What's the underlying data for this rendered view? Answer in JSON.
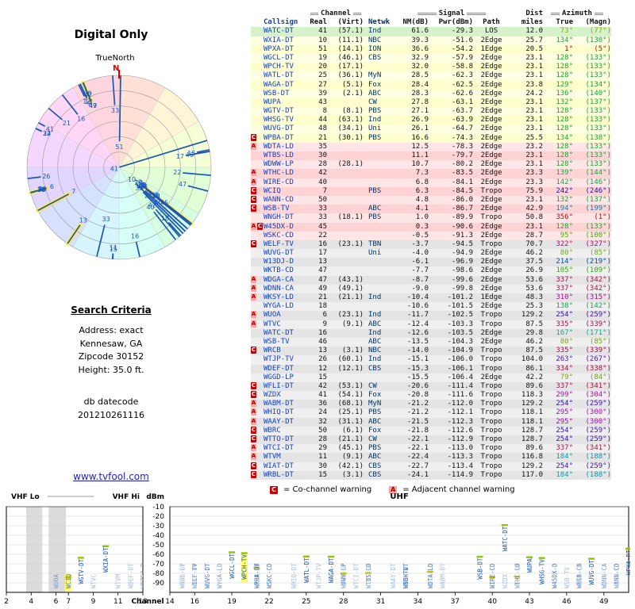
{
  "radar": {
    "title": "Digital Only",
    "true_north": "TrueNorth",
    "north": "N"
  },
  "search": {
    "heading": "Search Criteria",
    "address_label": "Address: exact",
    "city": "Kennesaw, GA",
    "zip": "Zipcode 30152",
    "height": "Height: 35.0 ft.",
    "db_label": "db datecode",
    "db_value": "201210261116",
    "site_link": "www.tvfool.com"
  },
  "legend": {
    "c_symbol": "C",
    "c_text": "= Co-channel warning",
    "a_symbol": "A",
    "a_text": "= Adjacent channel warning"
  },
  "table_headers": {
    "channel_group": "Channel",
    "signal_group": "Signal",
    "dist_group": "Dist",
    "azimuth_group": "Azimuth",
    "callsign": "Callsign",
    "real": "Real",
    "virt": "(Virt)",
    "netwk": "Netwk",
    "nm": "NM(dB)",
    "pwr": "Pwr(dBm)",
    "path": "Path",
    "miles": "miles",
    "true": "True",
    "magn": "(Magn)"
  },
  "axis": {
    "vhf_lo": "VHF Lo",
    "vhf_hi": "VHF Hi",
    "uhf": "UHF",
    "dbm": "dBm",
    "channel": "Channel",
    "dbm_ticks": [
      -10,
      -20,
      -30,
      -40,
      -50,
      -60,
      -70,
      -80,
      -90
    ],
    "vhf_ticks": [
      2,
      4,
      6,
      7,
      9,
      11,
      13
    ],
    "uhf_ticks": [
      14,
      16,
      19,
      22,
      25,
      28,
      31,
      34,
      37,
      40,
      43,
      46,
      49
    ]
  },
  "chart_data": {
    "type": "table",
    "title": "Digital Only",
    "views": [
      "polar-radar-by-azimuth",
      "signal-table",
      "channel-vs-dbm-band-chart"
    ],
    "radar_axes": {
      "angular": "azimuth_true_deg",
      "radial": "NM(dB), strongest at center"
    },
    "band_axes": {
      "x": "real channel 2-13 (VHF) / 14-51 (UHF)",
      "y": "Pwr(dBm)",
      "ylim": [
        -90,
        -10
      ]
    },
    "stations": [
      {
        "call": "WATC-DT",
        "real": 41,
        "virt": "(57.1)",
        "net": "Ind",
        "nm": 61.6,
        "pwr": -29.3,
        "path": "LOS",
        "mi": 12.0,
        "az": 73,
        "mag": 77,
        "warn": "",
        "zone": "green",
        "hl": false
      },
      {
        "call": "WXIA-DT",
        "real": 10,
        "virt": "(11.1)",
        "net": "NBC",
        "nm": 39.3,
        "pwr": -51.6,
        "path": "2Edge",
        "mi": 25.7,
        "az": 134,
        "mag": 138,
        "warn": "",
        "zone": "yellow",
        "hl": false
      },
      {
        "call": "WPXA-DT",
        "real": 51,
        "virt": "(14.1)",
        "net": "ION",
        "nm": 36.6,
        "pwr": -54.2,
        "path": "1Edge",
        "mi": 20.5,
        "az": 1,
        "mag": 5,
        "warn": "",
        "zone": "yellow",
        "hl": false
      },
      {
        "call": "WGCL-DT",
        "real": 19,
        "virt": "(46.1)",
        "net": "CBS",
        "nm": 32.9,
        "pwr": -57.9,
        "path": "2Edge",
        "mi": 23.1,
        "az": 128,
        "mag": 133,
        "warn": "",
        "zone": "yellow",
        "hl": false
      },
      {
        "call": "WPCH-TV",
        "real": 20,
        "virt": "(17.1)",
        "net": "",
        "nm": 32.0,
        "pwr": -58.8,
        "path": "2Edge",
        "mi": 23.1,
        "az": 128,
        "mag": 133,
        "warn": "",
        "zone": "yellow",
        "hl": true
      },
      {
        "call": "WATL-DT",
        "real": 25,
        "virt": "(36.1)",
        "net": "MyN",
        "nm": 28.5,
        "pwr": -62.3,
        "path": "2Edge",
        "mi": 23.1,
        "az": 128,
        "mag": 133,
        "warn": "",
        "zone": "yellow",
        "hl": false
      },
      {
        "call": "WAGA-DT",
        "real": 27,
        "virt": "(5.1)",
        "net": "Fox",
        "nm": 28.4,
        "pwr": -62.5,
        "path": "2Edge",
        "mi": 23.8,
        "az": 129,
        "mag": 134,
        "warn": "",
        "zone": "yellow",
        "hl": false
      },
      {
        "call": "WSB-DT",
        "real": 39,
        "virt": "(2.1)",
        "net": "ABC",
        "nm": 28.3,
        "pwr": -62.6,
        "path": "2Edge",
        "mi": 24.2,
        "az": 136,
        "mag": 140,
        "warn": "",
        "zone": "yellow",
        "hl": false
      },
      {
        "call": "WUPA",
        "real": 43,
        "virt": "",
        "net": "CW",
        "nm": 27.8,
        "pwr": -63.1,
        "path": "2Edge",
        "mi": 23.1,
        "az": 132,
        "mag": 137,
        "warn": "",
        "zone": "yellow",
        "hl": false
      },
      {
        "call": "WGTV-DT",
        "real": 8,
        "virt": "(8.1)",
        "net": "PBS",
        "nm": 27.1,
        "pwr": -63.7,
        "path": "2Edge",
        "mi": 23.1,
        "az": 128,
        "mag": 133,
        "warn": "",
        "zone": "yellow",
        "hl": false
      },
      {
        "call": "WHSG-TV",
        "real": 44,
        "virt": "(63.1)",
        "net": "Ind",
        "nm": 26.9,
        "pwr": -63.9,
        "path": "2Edge",
        "mi": 23.1,
        "az": 128,
        "mag": 133,
        "warn": "",
        "zone": "yellow",
        "hl": false
      },
      {
        "call": "WUVG-DT",
        "real": 48,
        "virt": "(34.1)",
        "net": "Uni",
        "nm": 26.1,
        "pwr": -64.7,
        "path": "2Edge",
        "mi": 23.1,
        "az": 128,
        "mag": 133,
        "warn": "",
        "zone": "yellow",
        "hl": false
      },
      {
        "call": "WPBA-DT",
        "real": 21,
        "virt": "(30.1)",
        "net": "PBS",
        "nm": 16.6,
        "pwr": -74.3,
        "path": "2Edge",
        "mi": 25.5,
        "az": 134,
        "mag": 138,
        "warn": "C",
        "zone": "yellow",
        "hl": false
      },
      {
        "call": "WDTA-LD",
        "real": 35,
        "virt": "",
        "net": "",
        "nm": 12.5,
        "pwr": -78.3,
        "path": "2Edge",
        "mi": 23.2,
        "az": 128,
        "mag": 133,
        "warn": "A",
        "zone": "pink",
        "hl": false
      },
      {
        "call": "WTBS-LD",
        "real": 30,
        "virt": "",
        "net": "",
        "nm": 11.1,
        "pwr": -79.7,
        "path": "2Edge",
        "mi": 23.1,
        "az": 128,
        "mag": 133,
        "warn": "",
        "zone": "pink",
        "hl": false
      },
      {
        "call": "WDWW-LP",
        "real": 28,
        "virt": "(28.1)",
        "net": "",
        "nm": 10.7,
        "pwr": -80.2,
        "path": "2Edge",
        "mi": 23.1,
        "az": 128,
        "mag": 133,
        "warn": "",
        "zone": "pink",
        "hl": false
      },
      {
        "call": "WTHC-LD",
        "real": 42,
        "virt": "",
        "net": "",
        "nm": 7.3,
        "pwr": -83.5,
        "path": "2Edge",
        "mi": 23.3,
        "az": 139,
        "mag": 144,
        "warn": "A",
        "zone": "pink",
        "hl": false
      },
      {
        "call": "WIRE-CD",
        "real": 40,
        "virt": "",
        "net": "",
        "nm": 6.8,
        "pwr": -84.1,
        "path": "2Edge",
        "mi": 23.3,
        "az": 142,
        "mag": 146,
        "warn": "A",
        "zone": "pink",
        "hl": false
      },
      {
        "call": "WCIQ",
        "real": 7,
        "virt": "",
        "net": "PBS",
        "nm": 6.3,
        "pwr": -84.5,
        "path": "Tropo",
        "mi": 75.9,
        "az": 242,
        "mag": 246,
        "warn": "C",
        "zone": "pink",
        "hl": true
      },
      {
        "call": "WANN-CD",
        "real": 50,
        "virt": "",
        "net": "",
        "nm": 4.8,
        "pwr": -86.0,
        "path": "2Edge",
        "mi": 23.1,
        "az": 132,
        "mag": 137,
        "warn": "C",
        "zone": "pink",
        "hl": false
      },
      {
        "call": "WSB-TV",
        "real": 33,
        "virt": "",
        "net": "ABC",
        "nm": 4.1,
        "pwr": -86.7,
        "path": "2Edge",
        "mi": 42.9,
        "az": 194,
        "mag": 199,
        "warn": "C",
        "zone": "pink",
        "hl": false
      },
      {
        "call": "WNGH-DT",
        "real": 33,
        "virt": "(18.1)",
        "net": "PBS",
        "nm": 1.0,
        "pwr": -89.9,
        "path": "Tropo",
        "mi": 50.8,
        "az": 356,
        "mag": 1,
        "warn": "",
        "zone": "pink",
        "hl": false
      },
      {
        "call": "W45DX-D",
        "real": 45,
        "virt": "",
        "net": "",
        "nm": 0.3,
        "pwr": -90.6,
        "path": "2Edge",
        "mi": 23.1,
        "az": 128,
        "mag": 133,
        "warn": "AC",
        "zone": "pink",
        "hl": false
      },
      {
        "call": "WSKC-CD",
        "real": 22,
        "virt": "",
        "net": "",
        "nm": -0.5,
        "pwr": -91.3,
        "path": "2Edge",
        "mi": 28.7,
        "az": 95,
        "mag": 100,
        "warn": "",
        "zone": "pink",
        "hl": false
      },
      {
        "call": "WELF-TV",
        "real": 16,
        "virt": "(23.1)",
        "net": "TBN",
        "nm": -3.7,
        "pwr": -94.5,
        "path": "Tropo",
        "mi": 70.7,
        "az": 322,
        "mag": 327,
        "warn": "C",
        "zone": "gray",
        "hl": false
      },
      {
        "call": "WUVG-DT",
        "real": 17,
        "virt": "",
        "net": "Uni",
        "nm": -4.0,
        "pwr": -94.9,
        "path": "2Edge",
        "mi": 46.2,
        "az": 80,
        "mag": 85,
        "warn": "",
        "zone": "gray",
        "hl": false
      },
      {
        "call": "W13DJ-D",
        "real": 13,
        "virt": "",
        "net": "",
        "nm": -6.1,
        "pwr": -96.9,
        "path": "2Edge",
        "mi": 37.5,
        "az": 214,
        "mag": 219,
        "warn": "",
        "zone": "gray",
        "hl": true
      },
      {
        "call": "WKTB-CD",
        "real": 47,
        "virt": "",
        "net": "",
        "nm": -7.7,
        "pwr": -98.6,
        "path": "2Edge",
        "mi": 26.9,
        "az": 105,
        "mag": 109,
        "warn": "",
        "zone": "gray",
        "hl": false
      },
      {
        "call": "WDGA-CA",
        "real": 47,
        "virt": "(43.1)",
        "net": "",
        "nm": -8.7,
        "pwr": -99.6,
        "path": "2Edge",
        "mi": 53.6,
        "az": 337,
        "mag": 342,
        "warn": "A",
        "zone": "gray",
        "hl": false
      },
      {
        "call": "WDNN-CA",
        "real": 49,
        "virt": "(49.1)",
        "net": "",
        "nm": -9.0,
        "pwr": -99.8,
        "path": "2Edge",
        "mi": 53.6,
        "az": 337,
        "mag": 342,
        "warn": "A",
        "zone": "gray",
        "hl": true
      },
      {
        "call": "WKSY-LD",
        "real": 21,
        "virt": "(21.1)",
        "net": "Ind",
        "nm": -10.4,
        "pwr": -101.2,
        "path": "1Edge",
        "mi": 48.3,
        "az": 310,
        "mag": 315,
        "warn": "A",
        "zone": "gray",
        "hl": false
      },
      {
        "call": "WYGA-LD",
        "real": 18,
        "virt": "",
        "net": "",
        "nm": -10.6,
        "pwr": -101.5,
        "path": "2Edge",
        "mi": 25.3,
        "az": 138,
        "mag": 142,
        "warn": "",
        "zone": "gray",
        "hl": false
      },
      {
        "call": "WUOA",
        "real": 6,
        "virt": "(23.1)",
        "net": "Ind",
        "nm": -11.7,
        "pwr": -102.5,
        "path": "Tropo",
        "mi": 129.2,
        "az": 254,
        "mag": 259,
        "warn": "A",
        "zone": "gray",
        "hl": true
      },
      {
        "call": "WTVC",
        "real": 9,
        "virt": "(9.1)",
        "net": "ABC",
        "nm": -12.4,
        "pwr": -103.3,
        "path": "Tropo",
        "mi": 87.5,
        "az": 335,
        "mag": 339,
        "warn": "A",
        "zone": "gray",
        "hl": false
      },
      {
        "call": "WATC-DT",
        "real": 16,
        "virt": "",
        "net": "Ind",
        "nm": -12.6,
        "pwr": -103.5,
        "path": "2Edge",
        "mi": 29.8,
        "az": 167,
        "mag": 171,
        "warn": "",
        "zone": "gray",
        "hl": false
      },
      {
        "call": "WSB-TV",
        "real": 46,
        "virt": "",
        "net": "ABC",
        "nm": -13.5,
        "pwr": -104.3,
        "path": "2Edge",
        "mi": 46.2,
        "az": 80,
        "mag": 85,
        "warn": "",
        "zone": "gray",
        "hl": false
      },
      {
        "call": "WRCB",
        "real": 13,
        "virt": "(3.1)",
        "net": "NBC",
        "nm": -14.0,
        "pwr": -104.9,
        "path": "Tropo",
        "mi": 87.5,
        "az": 335,
        "mag": 339,
        "warn": "C",
        "zone": "gray",
        "hl": false
      },
      {
        "call": "WTJP-TV",
        "real": 26,
        "virt": "(60.1)",
        "net": "Ind",
        "nm": -15.1,
        "pwr": -106.0,
        "path": "Tropo",
        "mi": 104.0,
        "az": 263,
        "mag": 267,
        "warn": "",
        "zone": "gray",
        "hl": false
      },
      {
        "call": "WDEF-DT",
        "real": 12,
        "virt": "(12.1)",
        "net": "CBS",
        "nm": -15.3,
        "pwr": -106.1,
        "path": "Tropo",
        "mi": 86.1,
        "az": 334,
        "mag": 338,
        "warn": "",
        "zone": "gray",
        "hl": false
      },
      {
        "call": "WGGD-LP",
        "real": 15,
        "virt": "",
        "net": "",
        "nm": -15.5,
        "pwr": -106.4,
        "path": "2Edge",
        "mi": 42.2,
        "az": 79,
        "mag": 84,
        "warn": "",
        "zone": "gray",
        "hl": false
      },
      {
        "call": "WFLI-DT",
        "real": 42,
        "virt": "(53.1)",
        "net": "CW",
        "nm": -20.6,
        "pwr": -111.4,
        "path": "Tropo",
        "mi": 89.6,
        "az": 337,
        "mag": 341,
        "warn": "C",
        "zone": "gray",
        "hl": false
      },
      {
        "call": "WZDX",
        "real": 41,
        "virt": "(54.1)",
        "net": "Fox",
        "nm": -20.8,
        "pwr": -111.6,
        "path": "Tropo",
        "mi": 118.3,
        "az": 299,
        "mag": 304,
        "warn": "C",
        "zone": "gray",
        "hl": false
      },
      {
        "call": "WABM-DT",
        "real": 36,
        "virt": "(68.1)",
        "net": "MyN",
        "nm": -21.2,
        "pwr": -112.0,
        "path": "Tropo",
        "mi": 129.2,
        "az": 254,
        "mag": 259,
        "warn": "A",
        "zone": "gray",
        "hl": false
      },
      {
        "call": "WHIQ-DT",
        "real": 24,
        "virt": "(25.1)",
        "net": "PBS",
        "nm": -21.2,
        "pwr": -112.1,
        "path": "Tropo",
        "mi": 118.1,
        "az": 295,
        "mag": 300,
        "warn": "A",
        "zone": "gray",
        "hl": false
      },
      {
        "call": "WAAY-DT",
        "real": 32,
        "virt": "(31.1)",
        "net": "ABC",
        "nm": -21.5,
        "pwr": -112.3,
        "path": "Tropo",
        "mi": 118.1,
        "az": 295,
        "mag": 300,
        "warn": "A",
        "zone": "gray",
        "hl": false
      },
      {
        "call": "WBRC",
        "real": 50,
        "virt": "(6.1)",
        "net": "Fox",
        "nm": -21.8,
        "pwr": -112.6,
        "path": "Tropo",
        "mi": 128.7,
        "az": 254,
        "mag": 259,
        "warn": "C",
        "zone": "gray",
        "hl": false
      },
      {
        "call": "WTTO-DT",
        "real": 28,
        "virt": "(21.1)",
        "net": "CW",
        "nm": -22.1,
        "pwr": -112.9,
        "path": "Tropo",
        "mi": 128.7,
        "az": 254,
        "mag": 259,
        "warn": "C",
        "zone": "gray",
        "hl": false
      },
      {
        "call": "WTCI-DT",
        "real": 29,
        "virt": "(45.1)",
        "net": "PBS",
        "nm": -22.1,
        "pwr": -113.0,
        "path": "Tropo",
        "mi": 89.6,
        "az": 337,
        "mag": 341,
        "warn": "A",
        "zone": "gray",
        "hl": false
      },
      {
        "call": "WTVM",
        "real": 11,
        "virt": "(9.1)",
        "net": "ABC",
        "nm": -22.4,
        "pwr": -113.3,
        "path": "Tropo",
        "mi": 116.8,
        "az": 184,
        "mag": 188,
        "warn": "A",
        "zone": "gray",
        "hl": false
      },
      {
        "call": "WIAT-DT",
        "real": 30,
        "virt": "(42.1)",
        "net": "CBS",
        "nm": -22.7,
        "pwr": -113.4,
        "path": "Tropo",
        "mi": 129.2,
        "az": 254,
        "mag": 259,
        "warn": "C",
        "zone": "gray",
        "hl": false
      },
      {
        "call": "WRBL-DT",
        "real": 15,
        "virt": "(3.1)",
        "net": "CBS",
        "nm": -24.1,
        "pwr": -114.9,
        "path": "Tropo",
        "mi": 117.0,
        "az": 184,
        "mag": 188,
        "warn": "C",
        "zone": "gray",
        "hl": false
      }
    ]
  }
}
